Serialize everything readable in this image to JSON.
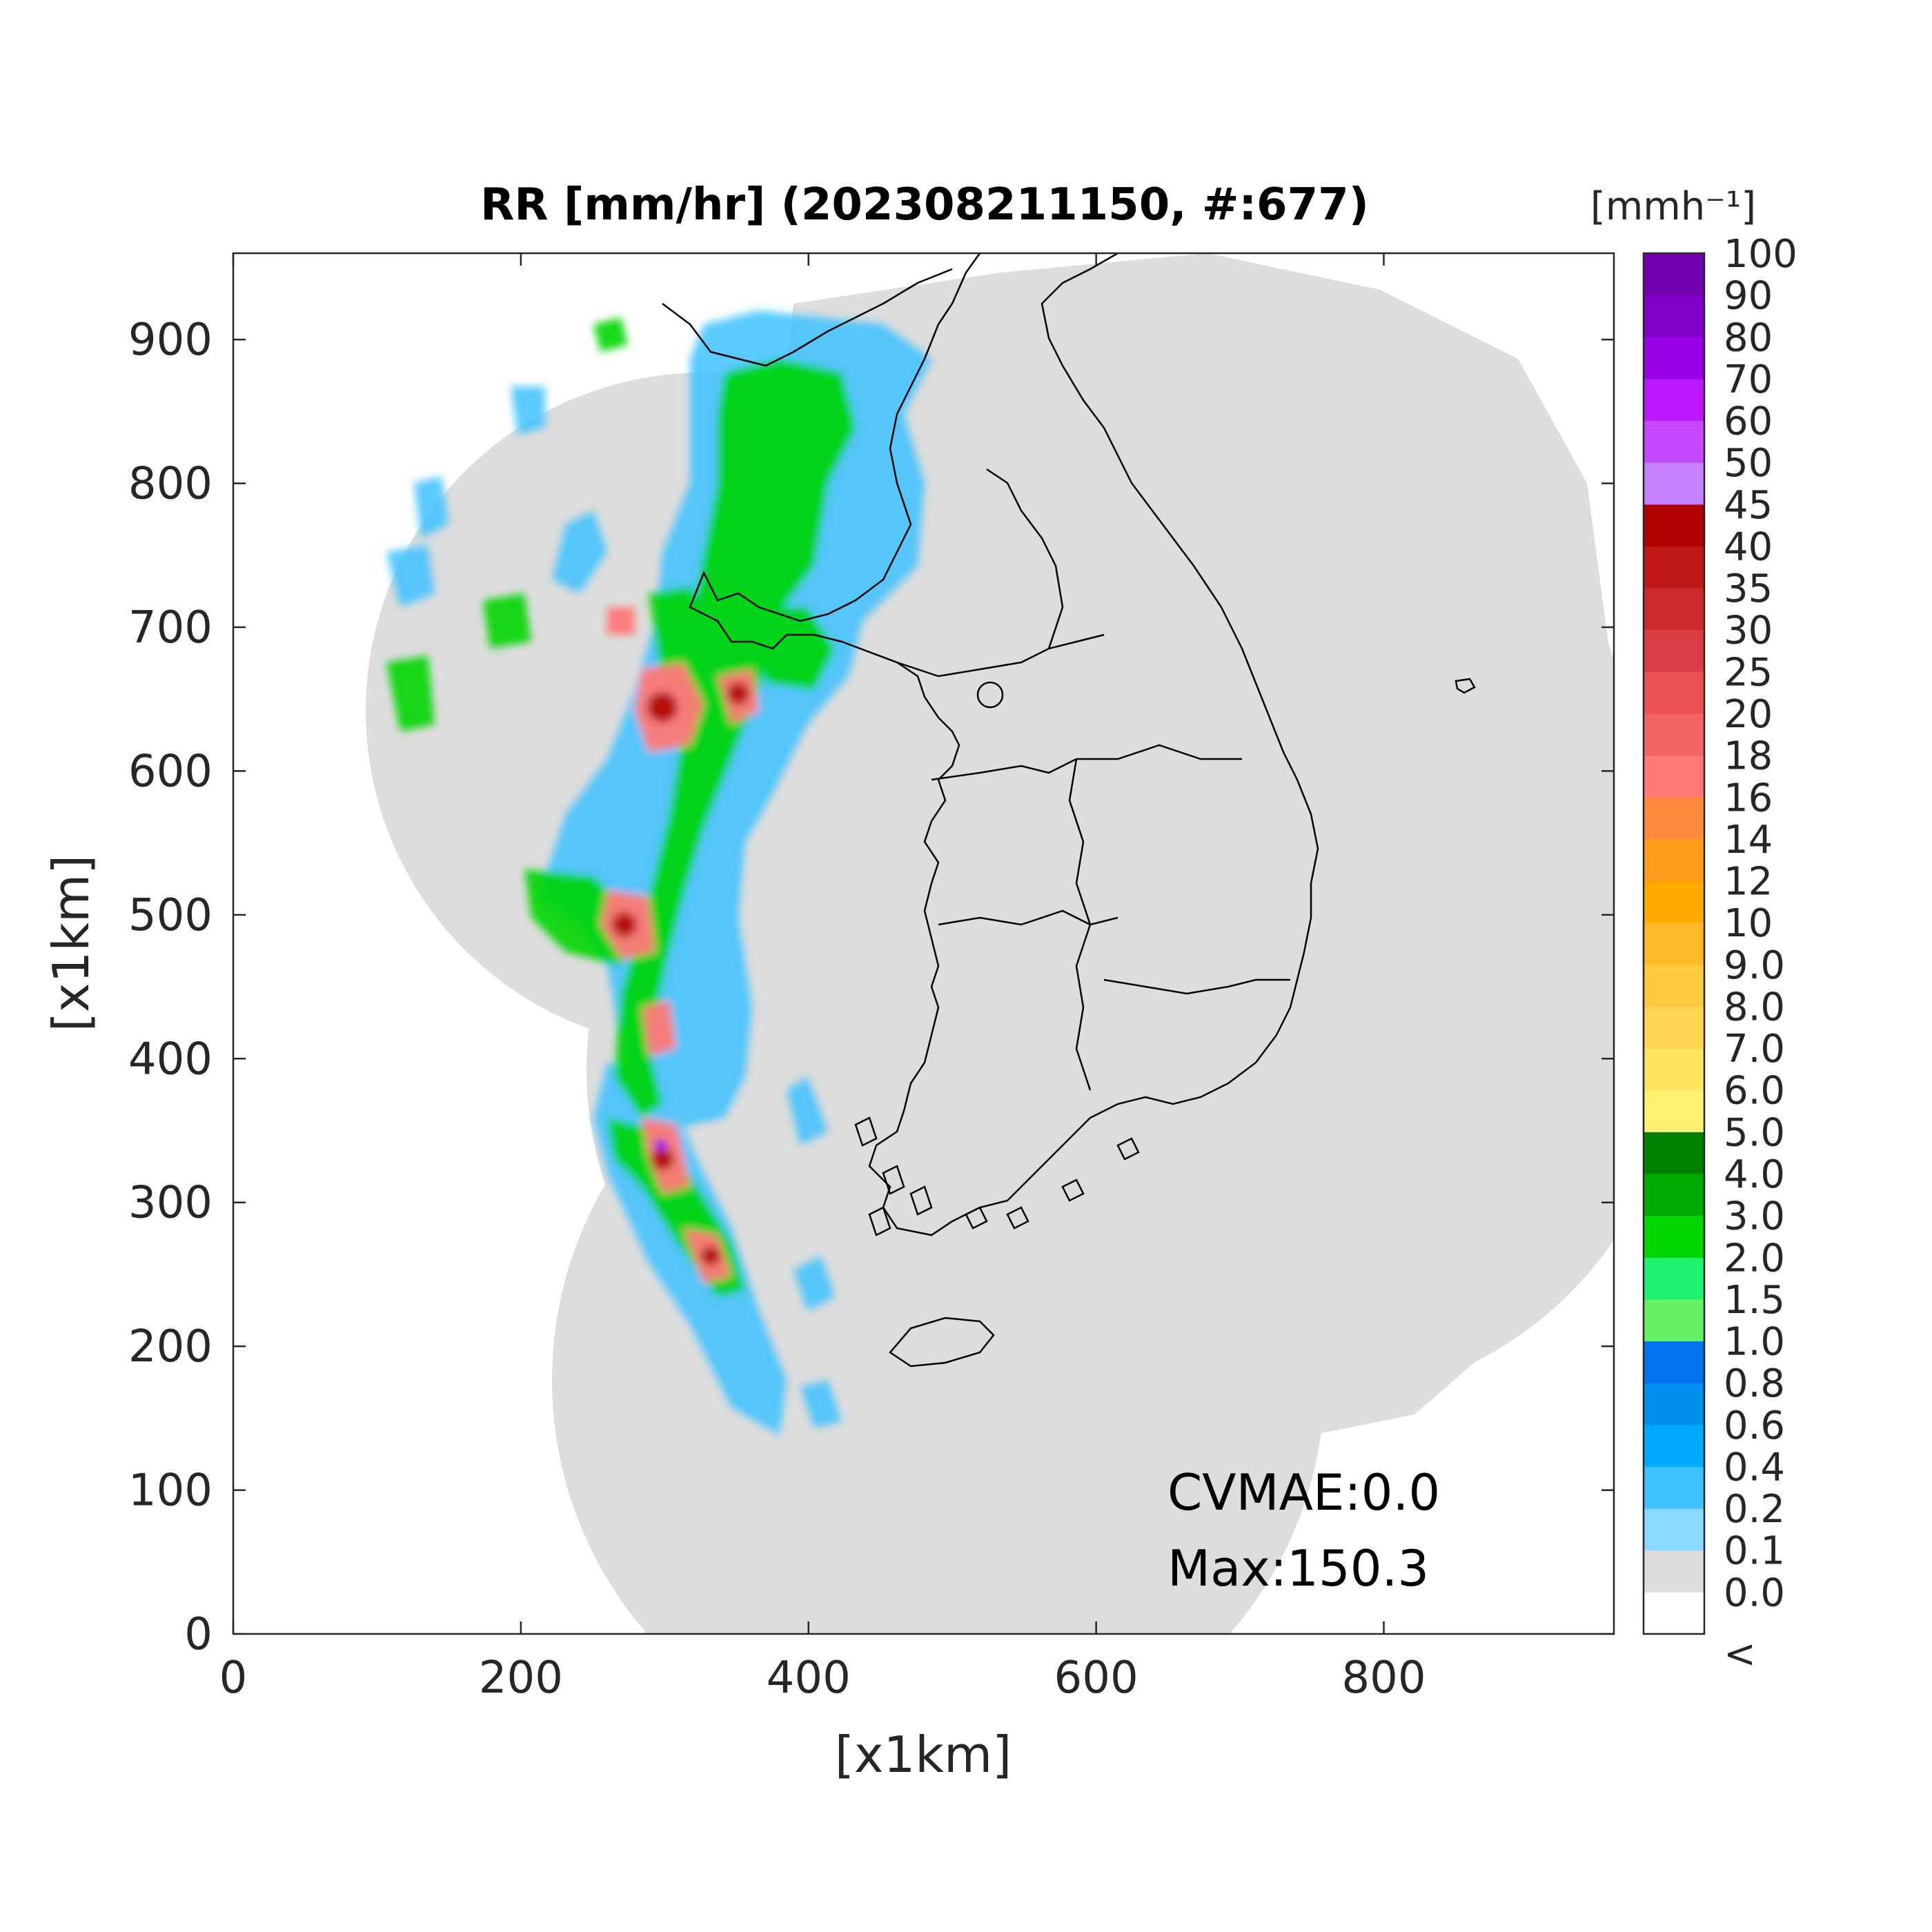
{
  "title": "RR [mm/hr] (202308211150, #:677)",
  "xlabel": "[x1km]",
  "ylabel": "[x1km]",
  "xticks": [
    "0",
    "200",
    "400",
    "600",
    "800"
  ],
  "yticks": [
    "0",
    "100",
    "200",
    "300",
    "400",
    "500",
    "600",
    "700",
    "800",
    "900"
  ],
  "axis_range": {
    "x": [
      0,
      960
    ],
    "y": [
      0,
      960
    ]
  },
  "annotations": {
    "cvmae": "CVMAE:0.0",
    "max": "Max:150.3"
  },
  "colorbar": {
    "unit": "[mmh⁻¹]",
    "labels": [
      "<",
      "0.0",
      "0.1",
      "0.2",
      "0.4",
      "0.6",
      "0.8",
      "1.0",
      "1.5",
      "2.0",
      "3.0",
      "4.0",
      "5.0",
      "6.0",
      "7.0",
      "8.0",
      "9.0",
      "10",
      "12",
      "14",
      "16",
      "18",
      "20",
      "25",
      "30",
      "35",
      "40",
      "45",
      "50",
      "60",
      "70",
      "80",
      "90",
      "100"
    ],
    "colors": [
      "#ffffff",
      "#dddddd",
      "#8ad9ff",
      "#3ec1ff",
      "#00aaff",
      "#0090f0",
      "#0072f0",
      "#66f066",
      "#1ef070",
      "#00d500",
      "#00a800",
      "#008000",
      "#fff072",
      "#ffe55e",
      "#ffd550",
      "#ffc83e",
      "#ffb828",
      "#ffa800",
      "#ff9a1a",
      "#ff8a3c",
      "#ff7878",
      "#f56464",
      "#ea5056",
      "#dd3c46",
      "#cc2a2a",
      "#c01818",
      "#b00000",
      "#c480ff",
      "#c448ff",
      "#ba18ff",
      "#9a00e8",
      "#8200cc",
      "#7000b0",
      "#333333"
    ]
  },
  "map": {
    "background_color": "#dddddd",
    "coast_color": "#000000"
  }
}
